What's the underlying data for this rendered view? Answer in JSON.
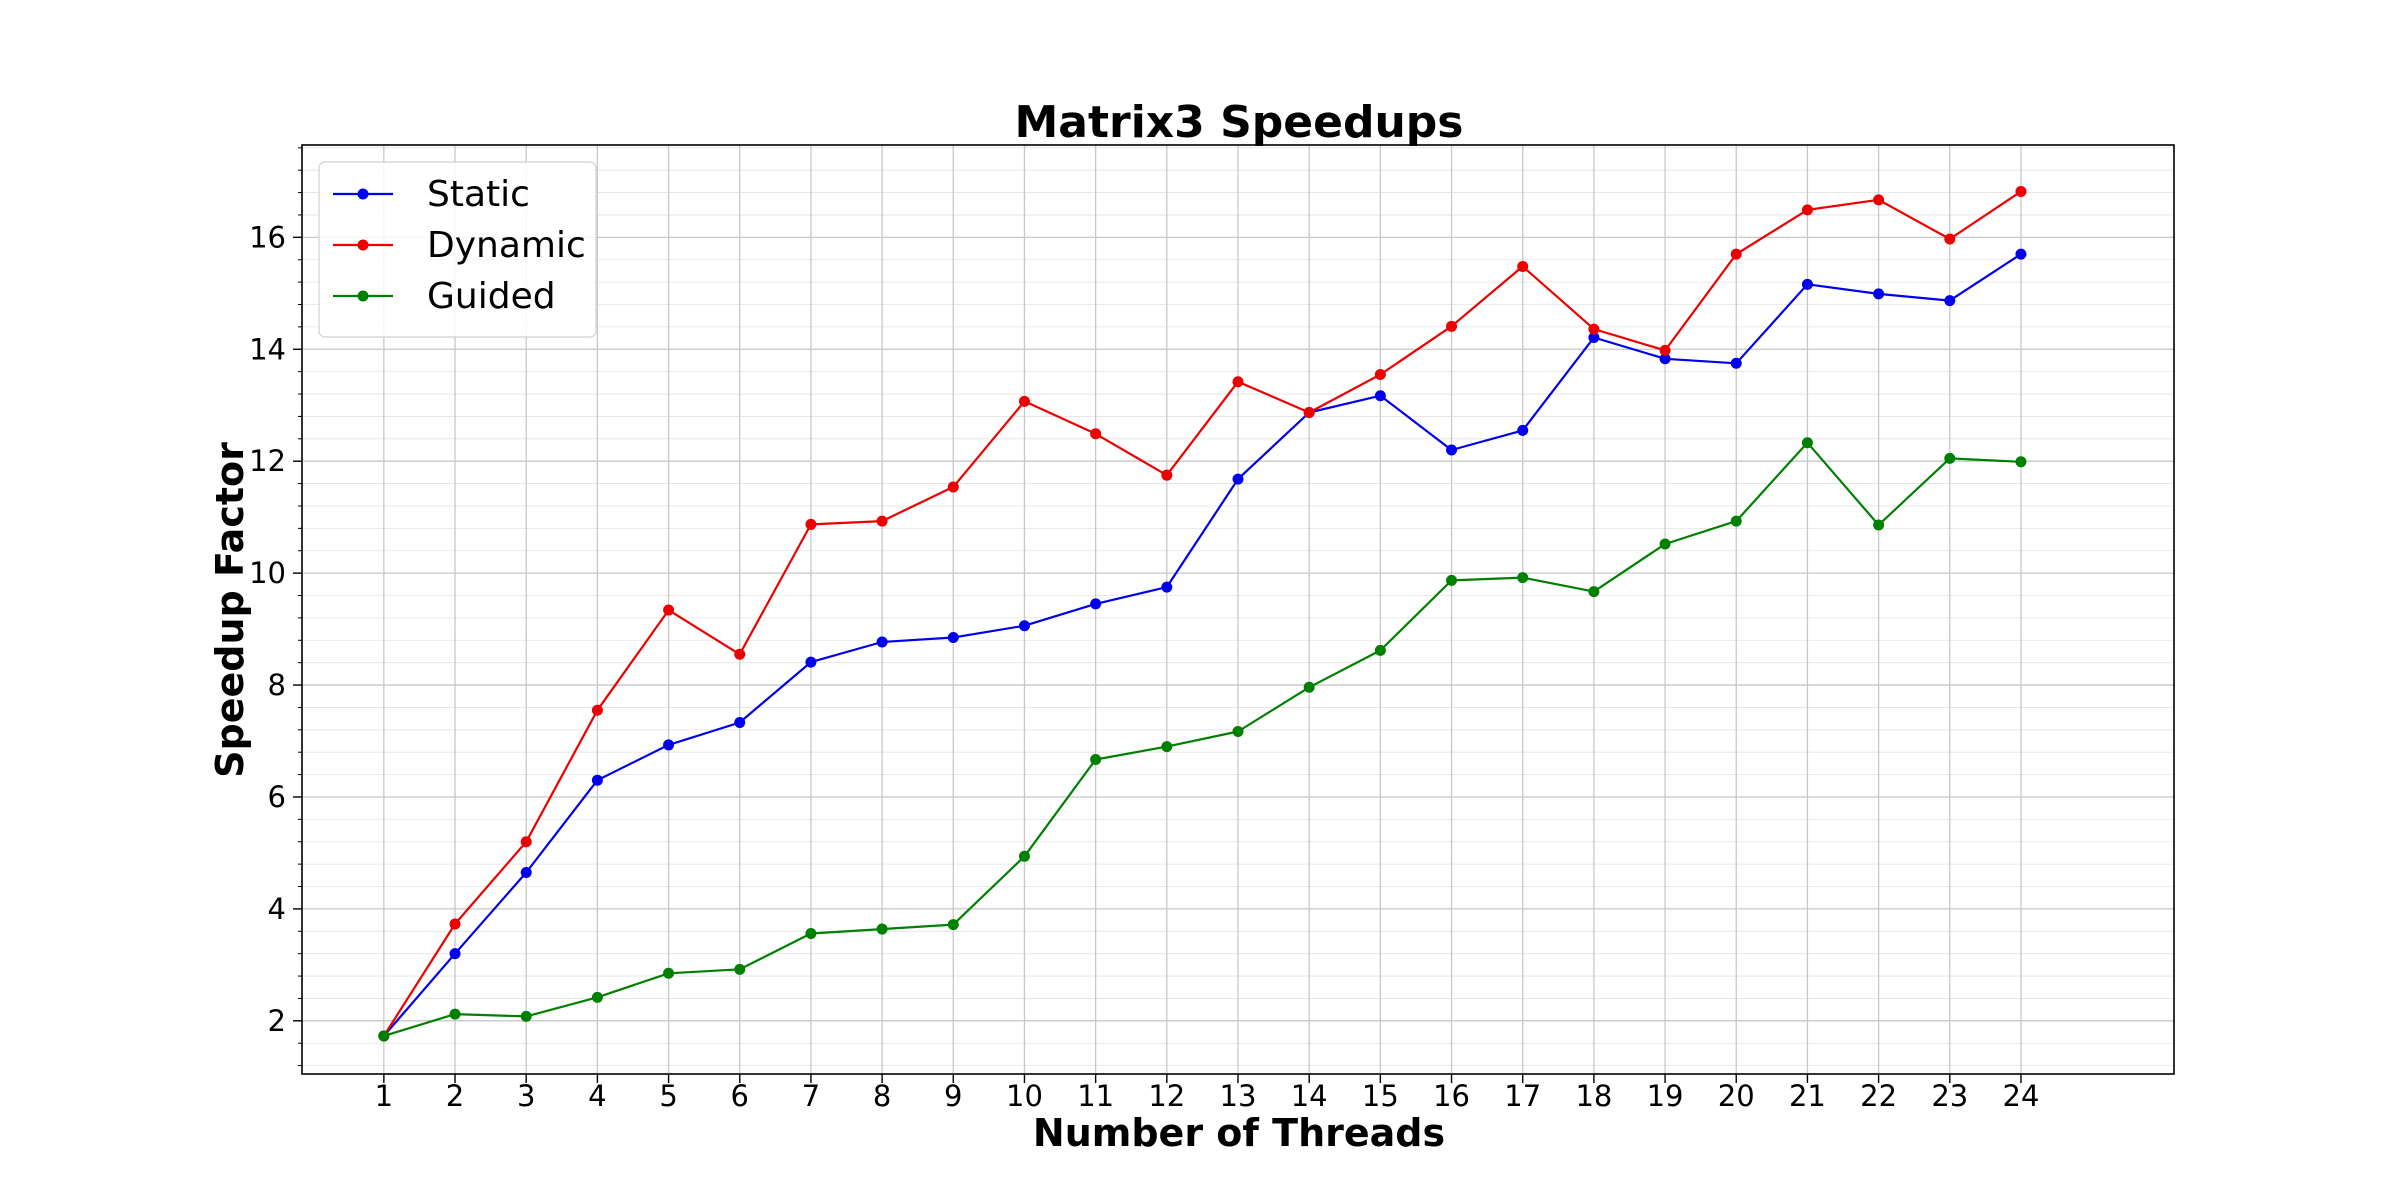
{
  "chart_data": {
    "type": "line",
    "title": "Matrix3 Speedups",
    "xlabel": "Number of Threads",
    "ylabel": "Speedup Factor",
    "x": [
      1,
      2,
      3,
      4,
      5,
      6,
      7,
      8,
      9,
      10,
      11,
      12,
      13,
      14,
      15,
      16,
      17,
      18,
      19,
      20,
      21,
      22,
      23,
      24
    ],
    "xlim": [
      -0.15,
      26.15
    ],
    "ylim": [
      1.05,
      17.65
    ],
    "yticks": [
      2,
      4,
      6,
      8,
      10,
      12,
      14,
      16
    ],
    "grid": true,
    "minor_grid": true,
    "legend_position": "top-left",
    "series": [
      {
        "name": "Static",
        "color": "#0000ee",
        "values": [
          1.73,
          3.2,
          4.65,
          6.3,
          6.93,
          7.33,
          8.41,
          8.77,
          8.85,
          9.06,
          9.45,
          9.75,
          11.68,
          12.87,
          13.17,
          12.2,
          12.55,
          14.21,
          13.83,
          13.75,
          15.16,
          14.99,
          14.87,
          15.7
        ]
      },
      {
        "name": "Dynamic",
        "color": "#ee0000",
        "values": [
          1.73,
          3.73,
          5.2,
          7.55,
          9.34,
          8.55,
          10.87,
          10.93,
          11.54,
          13.07,
          12.49,
          11.75,
          13.42,
          12.87,
          13.55,
          14.41,
          15.48,
          14.36,
          13.98,
          15.7,
          16.49,
          16.67,
          15.97,
          16.82
        ]
      },
      {
        "name": "Guided",
        "color": "#008000",
        "values": [
          1.73,
          2.12,
          2.08,
          2.42,
          2.85,
          2.92,
          3.56,
          3.64,
          3.72,
          4.94,
          6.67,
          6.9,
          7.17,
          7.96,
          8.62,
          9.87,
          9.92,
          9.67,
          10.52,
          10.93,
          12.33,
          10.86,
          12.05,
          11.99
        ]
      }
    ]
  }
}
